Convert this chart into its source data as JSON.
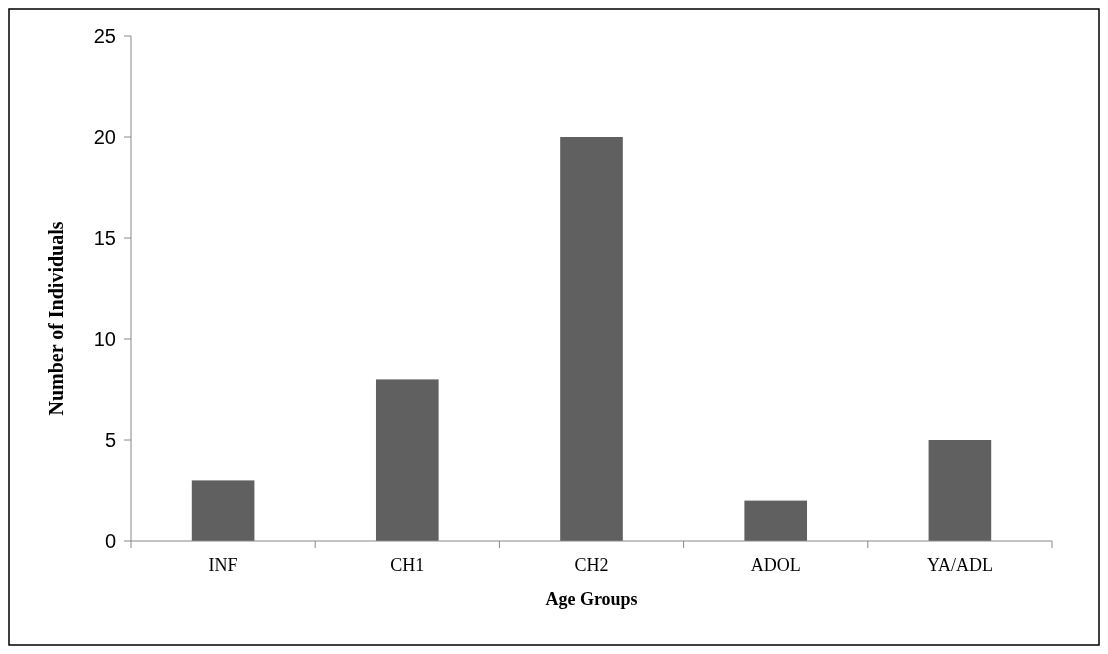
{
  "chart_data": {
    "type": "bar",
    "xlabel": "Age Groups",
    "ylabel": "Number of Individuals",
    "categories": [
      "INF",
      "CH1",
      "CH2",
      "ADOL",
      "YA/ADL"
    ],
    "values": [
      3,
      8,
      20,
      2,
      5
    ],
    "color": "#606060",
    "ylim": [
      0,
      25
    ],
    "yticks": [
      0,
      5,
      10,
      15,
      20,
      25
    ],
    "grid": false
  }
}
